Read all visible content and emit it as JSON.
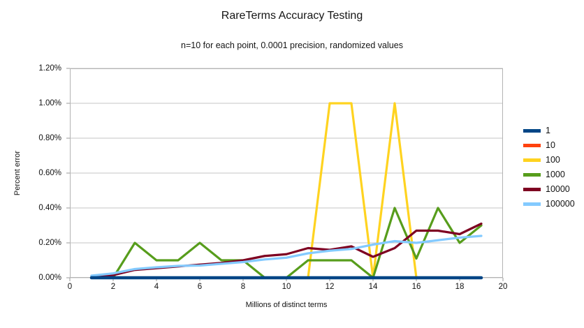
{
  "title": "RareTerms Accuracy Testing",
  "subtitle": "n=10 for each point, 0.0001 precision, randomized values",
  "chart_data": {
    "type": "line",
    "title": "RareTerms Accuracy Testing",
    "subtitle": "n=10 for each point, 0.0001 precision, randomized values",
    "xlabel": "Millions of distinct terms",
    "ylabel": "Percent error",
    "xlim": [
      0,
      20
    ],
    "ylim_percent": [
      0,
      1.2
    ],
    "grid": "horizontal",
    "legend_position": "right",
    "xticks": [
      0,
      2,
      4,
      6,
      8,
      10,
      12,
      14,
      16,
      18,
      20
    ],
    "yticks": [
      {
        "value": 0.0,
        "label": "0.00%"
      },
      {
        "value": 0.2,
        "label": "0.20%"
      },
      {
        "value": 0.4,
        "label": "0.40%"
      },
      {
        "value": 0.6,
        "label": "0.60%"
      },
      {
        "value": 0.8,
        "label": "0.80%"
      },
      {
        "value": 1.0,
        "label": "1.00%"
      },
      {
        "value": 1.2,
        "label": "1.20%"
      }
    ],
    "x": [
      1,
      2,
      3,
      4,
      5,
      6,
      7,
      8,
      9,
      10,
      11,
      12,
      13,
      14,
      15,
      16,
      17,
      18,
      19
    ],
    "series": [
      {
        "name": "1",
        "color": "#004586",
        "stroke_width": 4.5,
        "values_percent": [
          0,
          0,
          0,
          0,
          0,
          0,
          0,
          0,
          0,
          0,
          0,
          0,
          0,
          0,
          0,
          0,
          0,
          0,
          0
        ]
      },
      {
        "name": "10",
        "color": "#ff420e",
        "stroke_width": 3,
        "values_percent": [
          0,
          0,
          0,
          0,
          0,
          0,
          0,
          0,
          0,
          0,
          0,
          0,
          0,
          0,
          0,
          0,
          0,
          0,
          0
        ]
      },
      {
        "name": "100",
        "color": "#ffd320",
        "stroke_width": 3.2,
        "values_percent": [
          0,
          0,
          0,
          0,
          0,
          0,
          0,
          0,
          0,
          0,
          0,
          1.0,
          1.0,
          0,
          1.0,
          0,
          0,
          0,
          0
        ]
      },
      {
        "name": "1000",
        "color": "#579d1c",
        "stroke_width": 3.2,
        "values_percent": [
          0.01,
          0,
          0.2,
          0.1,
          0.1,
          0.2,
          0.1,
          0.1,
          0,
          0,
          0.1,
          0.1,
          0.1,
          0,
          0.4,
          0.11,
          0.4,
          0.2,
          0.3
        ]
      },
      {
        "name": "10000",
        "color": "#7e0021",
        "stroke_width": 3.2,
        "values_percent": [
          0.01,
          0.015,
          0.045,
          0.055,
          0.065,
          0.075,
          0.085,
          0.1,
          0.125,
          0.135,
          0.17,
          0.16,
          0.18,
          0.12,
          0.17,
          0.27,
          0.27,
          0.25,
          0.31
        ]
      },
      {
        "name": "100000",
        "color": "#83caff",
        "stroke_width": 3.2,
        "values_percent": [
          0.012,
          0.025,
          0.05,
          0.06,
          0.068,
          0.07,
          0.08,
          0.09,
          0.105,
          0.115,
          0.14,
          0.155,
          0.165,
          0.19,
          0.21,
          0.2,
          0.215,
          0.23,
          0.24
        ]
      }
    ],
    "style": {
      "gridline_color": "#c5c5c5",
      "border_color": "#b3b3b3",
      "tick_color": "#999999"
    }
  }
}
